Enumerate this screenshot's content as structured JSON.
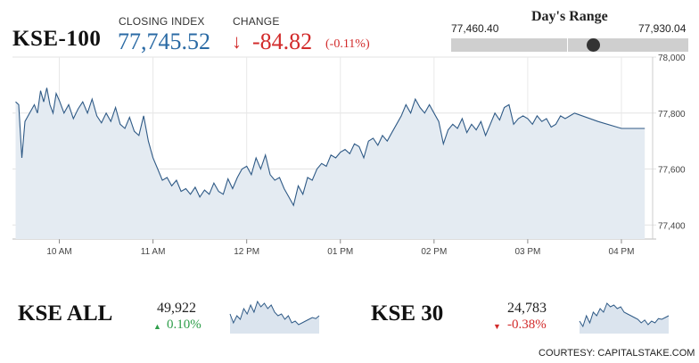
{
  "header": {
    "index_name": "KSE-100",
    "closing_label": "CLOSING INDEX",
    "closing_value": "77,745.52",
    "change_label": "CHANGE",
    "change_value": "-84.82",
    "change_pct": "(-0.11%)",
    "change_color": "#d22b2b",
    "closing_color": "#2a6aa4"
  },
  "days_range": {
    "title": "Day's Range",
    "low_label": "77,460.40",
    "high_label": "77,930.04",
    "low": 77460.4,
    "high": 77930.04,
    "current": 77745.52
  },
  "chart_data": {
    "type": "area",
    "title": "",
    "xlabel": "",
    "ylabel": "",
    "ylim": [
      77350,
      78000
    ],
    "y_ticks": [
      "77,400",
      "77,600",
      "77,800",
      "78,000"
    ],
    "y_tick_values": [
      77400,
      77600,
      77800,
      78000
    ],
    "x_ticks": [
      "10 AM",
      "11 AM",
      "12 PM",
      "01 PM",
      "02 PM",
      "03 PM",
      "04 PM"
    ],
    "x_tick_values": [
      "10:00",
      "11:00",
      "12:00",
      "13:00",
      "14:00",
      "15:00",
      "16:00"
    ],
    "grid": true,
    "line_color": "#2f5a86",
    "fill_color": "#e4ebf2",
    "series": [
      {
        "x": [
          "09:32",
          "09:34",
          "09:36",
          "09:38",
          "09:40",
          "09:42",
          "09:44",
          "09:46",
          "09:48",
          "09:50",
          "09:52",
          "09:54",
          "09:56",
          "09:58",
          "10:00",
          "10:03",
          "10:06",
          "10:09",
          "10:12",
          "10:15",
          "10:18",
          "10:21",
          "10:24",
          "10:27",
          "10:30",
          "10:33",
          "10:36",
          "10:39",
          "10:42",
          "10:45",
          "10:48",
          "10:51",
          "10:54",
          "10:57",
          "11:00",
          "11:03",
          "11:06",
          "11:09",
          "11:12",
          "11:15",
          "11:18",
          "11:21",
          "11:24",
          "11:27",
          "11:30",
          "11:33",
          "11:36",
          "11:39",
          "11:42",
          "11:45",
          "11:48",
          "11:51",
          "11:54",
          "11:57",
          "12:00",
          "12:03",
          "12:06",
          "12:09",
          "12:12",
          "12:15",
          "12:18",
          "12:21",
          "12:24",
          "12:27",
          "12:30",
          "12:33",
          "12:36",
          "12:39",
          "12:42",
          "12:45",
          "12:48",
          "12:51",
          "12:54",
          "12:57",
          "13:00",
          "13:03",
          "13:06",
          "13:09",
          "13:12",
          "13:15",
          "13:18",
          "13:21",
          "13:24",
          "13:27",
          "13:30",
          "13:33",
          "13:36",
          "13:39",
          "13:42",
          "13:45",
          "13:48",
          "13:51",
          "13:54",
          "13:57",
          "14:00",
          "14:03",
          "14:06",
          "14:09",
          "14:12",
          "14:15",
          "14:18",
          "14:21",
          "14:24",
          "14:27",
          "14:30",
          "14:33",
          "14:36",
          "14:39",
          "14:42",
          "14:45",
          "14:48",
          "14:51",
          "14:54",
          "14:57",
          "15:00",
          "15:03",
          "15:06",
          "15:09",
          "15:12",
          "15:15",
          "15:18",
          "15:21",
          "15:24",
          "15:27",
          "15:30",
          "15:45",
          "16:00",
          "16:15"
        ],
        "y": [
          77840,
          77830,
          77640,
          77770,
          77790,
          77810,
          77830,
          77800,
          77880,
          77840,
          77890,
          77830,
          77800,
          77870,
          77845,
          77800,
          77830,
          77780,
          77815,
          77840,
          77800,
          77850,
          77790,
          77765,
          77800,
          77770,
          77820,
          77760,
          77745,
          77785,
          77735,
          77720,
          77790,
          77700,
          77640,
          77600,
          77560,
          77570,
          77540,
          77560,
          77520,
          77530,
          77510,
          77535,
          77500,
          77525,
          77510,
          77550,
          77520,
          77510,
          77565,
          77530,
          77570,
          77600,
          77610,
          77580,
          77640,
          77600,
          77650,
          77580,
          77560,
          77570,
          77530,
          77500,
          77470,
          77540,
          77510,
          77570,
          77560,
          77600,
          77620,
          77610,
          77650,
          77640,
          77660,
          77670,
          77655,
          77690,
          77680,
          77640,
          77700,
          77710,
          77685,
          77720,
          77700,
          77730,
          77760,
          77790,
          77830,
          77800,
          77850,
          77820,
          77800,
          77830,
          77800,
          77770,
          77690,
          77740,
          77760,
          77745,
          77780,
          77730,
          77760,
          77740,
          77770,
          77720,
          77760,
          77800,
          77775,
          77820,
          77830,
          77760,
          77780,
          77790,
          77780,
          77760,
          77790,
          77770,
          77780,
          77750,
          77760,
          77790,
          77780,
          77790,
          77800,
          77770,
          77745,
          77745
        ]
      }
    ]
  },
  "sub_indices": [
    {
      "name": "KSE ALL",
      "value": "49,922",
      "change": "0.10%",
      "direction": "up",
      "color": "#2e9e4a",
      "spark": [
        0.55,
        0.3,
        0.5,
        0.4,
        0.7,
        0.55,
        0.8,
        0.6,
        0.9,
        0.75,
        0.85,
        0.7,
        0.8,
        0.6,
        0.5,
        0.55,
        0.4,
        0.5,
        0.3,
        0.35,
        0.25,
        0.3,
        0.35,
        0.4,
        0.45,
        0.42,
        0.5
      ]
    },
    {
      "name": "KSE 30",
      "value": "24,783",
      "change": "-0.38%",
      "direction": "down",
      "color": "#d22b2b",
      "spark": [
        0.35,
        0.2,
        0.5,
        0.3,
        0.6,
        0.5,
        0.7,
        0.6,
        0.85,
        0.75,
        0.8,
        0.7,
        0.75,
        0.6,
        0.55,
        0.5,
        0.45,
        0.4,
        0.3,
        0.38,
        0.25,
        0.35,
        0.3,
        0.42,
        0.4,
        0.45,
        0.5
      ]
    }
  ],
  "credit": "COURTESY: CAPITALSTAKE.COM"
}
